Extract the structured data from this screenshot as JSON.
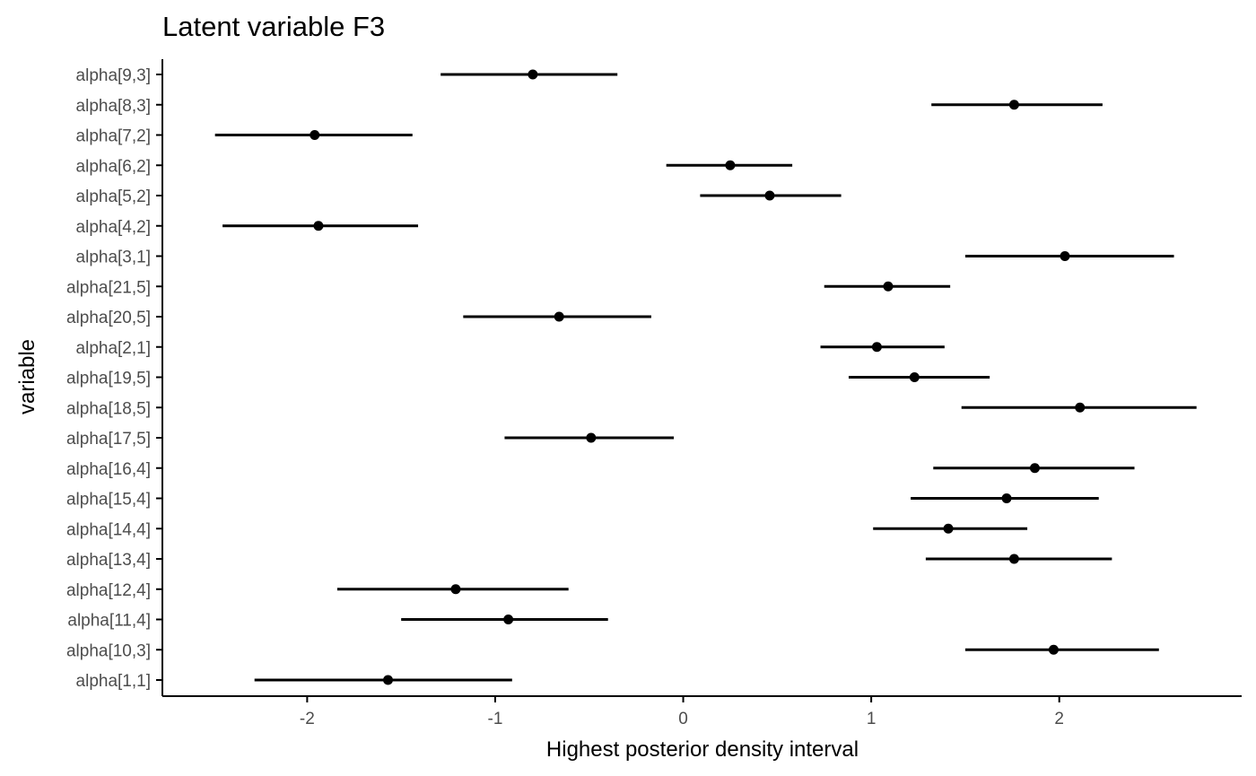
{
  "chart_data": {
    "type": "pointrange",
    "title": "Latent variable F3",
    "xlabel": "Highest posterior density interval",
    "ylabel": "variable",
    "xlim": [
      -2.77,
      2.97
    ],
    "x_ticks": [
      -2,
      -1,
      0,
      1,
      2
    ],
    "grid": false,
    "colors": {
      "point": "#000000",
      "interval": "#000000",
      "axis": "#000000",
      "tick_label": "#4d4d4d"
    },
    "categories": [
      "alpha[9,3]",
      "alpha[8,3]",
      "alpha[7,2]",
      "alpha[6,2]",
      "alpha[5,2]",
      "alpha[4,2]",
      "alpha[3,1]",
      "alpha[21,5]",
      "alpha[20,5]",
      "alpha[2,1]",
      "alpha[19,5]",
      "alpha[18,5]",
      "alpha[17,5]",
      "alpha[16,4]",
      "alpha[15,4]",
      "alpha[14,4]",
      "alpha[13,4]",
      "alpha[12,4]",
      "alpha[11,4]",
      "alpha[10,3]",
      "alpha[1,1]"
    ],
    "estimate": [
      -0.8,
      1.76,
      -1.96,
      0.25,
      0.46,
      -1.94,
      2.03,
      1.09,
      -0.66,
      1.03,
      1.23,
      2.11,
      -0.49,
      1.87,
      1.72,
      1.41,
      1.76,
      -1.21,
      -0.93,
      1.97,
      -1.57
    ],
    "lower": [
      -1.29,
      1.32,
      -2.49,
      -0.09,
      0.09,
      -2.45,
      1.5,
      0.75,
      -1.17,
      0.73,
      0.88,
      1.48,
      -0.95,
      1.33,
      1.21,
      1.01,
      1.29,
      -1.84,
      -1.5,
      1.5,
      -2.28
    ],
    "upper": [
      -0.35,
      2.23,
      -1.44,
      0.58,
      0.84,
      -1.41,
      2.61,
      1.42,
      -0.17,
      1.39,
      1.63,
      2.73,
      -0.05,
      2.4,
      2.21,
      1.83,
      2.28,
      -0.61,
      -0.4,
      2.53,
      -0.91
    ]
  }
}
